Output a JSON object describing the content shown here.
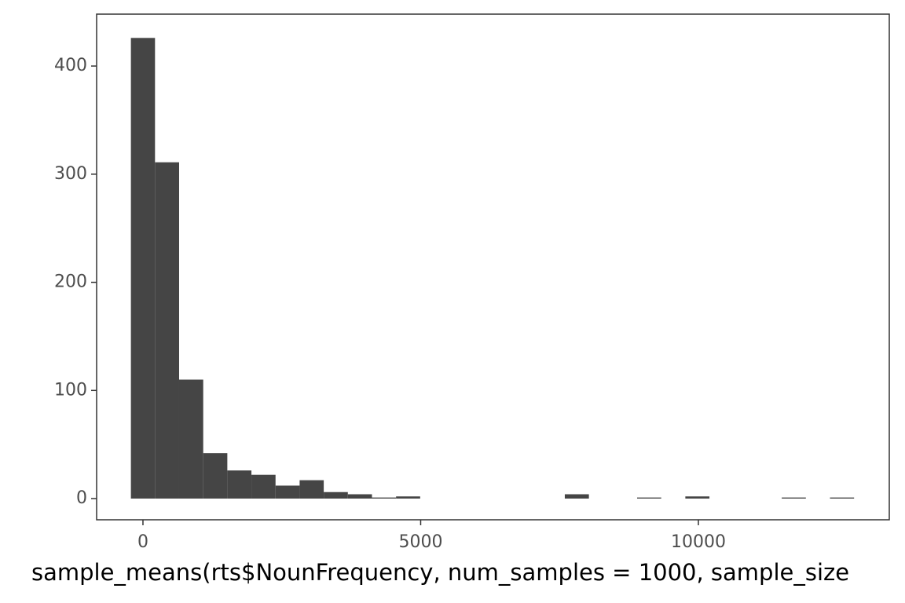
{
  "chart_data": {
    "type": "histogram",
    "x_label": "sample_means(rts$NounFrequency, num_samples = 1000, sample_size",
    "bins": [
      -217,
      217,
      651,
      1085,
      1519,
      1953,
      2387,
      2821,
      3255,
      3689,
      4123,
      4557,
      4991,
      5425,
      5859,
      6293,
      6727,
      7161,
      7595,
      8029,
      8463,
      8897,
      9331,
      9765,
      10199,
      10633,
      11067,
      11501,
      11935,
      12369,
      12803
    ],
    "values": [
      426,
      311,
      110,
      42,
      26,
      22,
      12,
      17,
      6,
      4,
      1,
      2,
      0,
      0,
      0,
      0,
      0,
      0,
      4,
      0,
      0,
      1,
      0,
      2,
      0,
      0,
      0,
      1,
      0,
      1
    ],
    "color": "#454545",
    "xlim": [
      -834,
      13437
    ],
    "xticks": [
      0,
      5000,
      10000
    ],
    "ylim": [
      -19.6,
      448
    ],
    "yticks": [
      0,
      100,
      200,
      300,
      400
    ],
    "grid": false
  }
}
